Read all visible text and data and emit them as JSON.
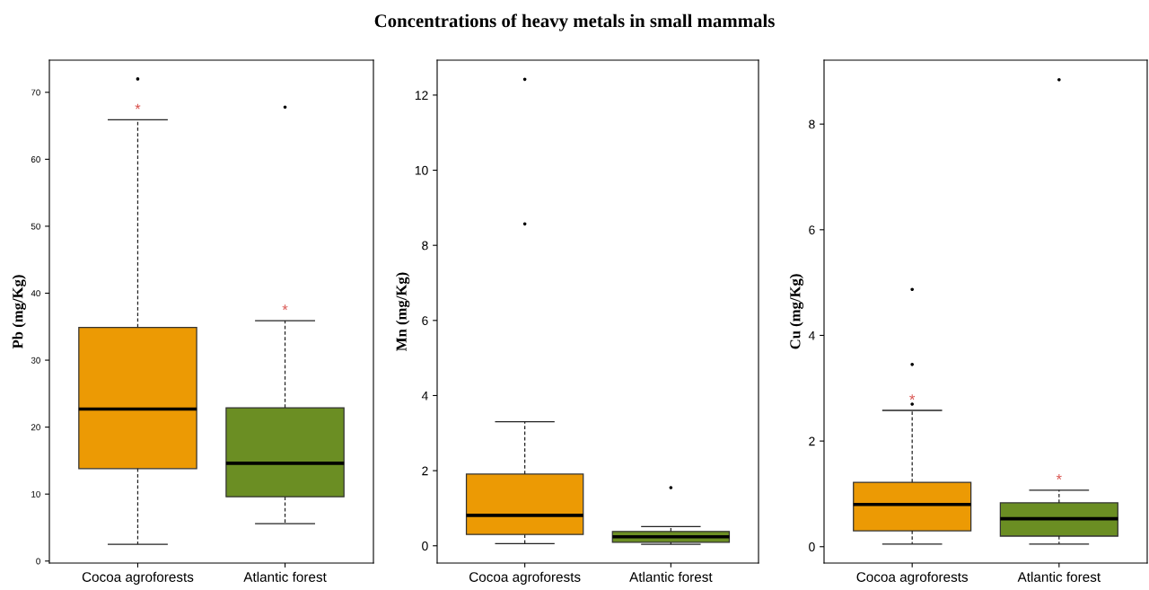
{
  "chart_data": [
    {
      "type": "other",
      "title": "Concentrations of heavy metals in small mammals"
    },
    {
      "type": "box",
      "ylabel": "Pb (mg/Kg)",
      "categories": [
        "Cocoa agroforests",
        "Atlantic forest"
      ],
      "colors": [
        "#ec9a04",
        "#6b8e23"
      ],
      "boxes": [
        {
          "low": 2.5,
          "q1": 13.8,
          "median": 22.7,
          "q3": 34.9,
          "high": 65.9,
          "outliers": [
            72.0
          ]
        },
        {
          "low": 5.6,
          "q1": 9.6,
          "median": 14.6,
          "q3": 22.9,
          "high": 35.9,
          "outliers": [
            67.8
          ]
        }
      ],
      "annotations": [
        "*",
        "*"
      ],
      "ylim": [
        -0.3,
        74.8
      ],
      "yticks": [
        0,
        10,
        20,
        30,
        40,
        50,
        60,
        70
      ],
      "grid": false,
      "legend": false
    },
    {
      "type": "box",
      "ylabel": "Mn (mg/Kg)",
      "categories": [
        "Cocoa agroforests",
        "Atlantic forest"
      ],
      "colors": [
        "#ec9a04",
        "#6b8e23"
      ],
      "boxes": [
        {
          "low": 0.06,
          "q1": 0.3,
          "median": 0.81,
          "q3": 1.91,
          "high": 3.3,
          "outliers": [
            8.57,
            12.42
          ]
        },
        {
          "low": 0.04,
          "q1": 0.09,
          "median": 0.24,
          "q3": 0.38,
          "high": 0.51,
          "outliers": [
            1.55
          ]
        }
      ],
      "ylim": [
        -0.46,
        12.93
      ],
      "yticks": [
        0,
        2,
        4,
        6,
        8,
        10,
        12
      ],
      "grid": false,
      "legend": false
    },
    {
      "type": "box",
      "ylabel": "Cu (mg/Kg)",
      "categories": [
        "Cocoa agroforests",
        "Atlantic forest"
      ],
      "colors": [
        "#ec9a04",
        "#6b8e23"
      ],
      "boxes": [
        {
          "low": 0.05,
          "q1": 0.3,
          "median": 0.8,
          "q3": 1.22,
          "high": 2.58,
          "outliers": [
            2.7,
            3.45,
            4.87
          ]
        },
        {
          "low": 0.05,
          "q1": 0.2,
          "median": 0.53,
          "q3": 0.83,
          "high": 1.07,
          "outliers": [
            8.84
          ]
        }
      ],
      "annotations": [
        "*",
        "*"
      ],
      "ylim": [
        -0.31,
        9.21
      ],
      "yticks": [
        0,
        2,
        4,
        6,
        8
      ],
      "grid": false,
      "legend": false
    }
  ]
}
